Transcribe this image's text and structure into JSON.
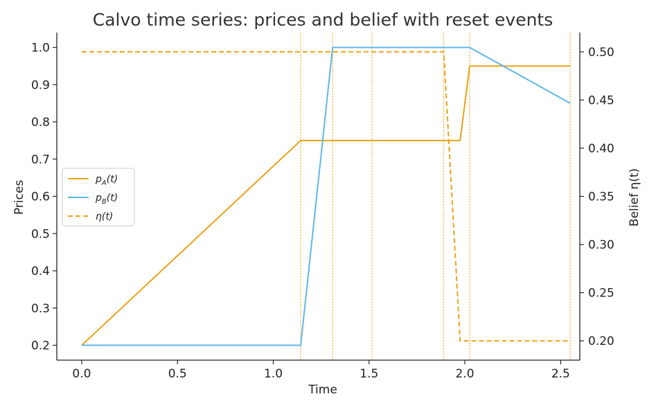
{
  "chart_data": {
    "type": "line",
    "title": "Calvo time series: prices and belief with reset events",
    "xlabel": "Time",
    "ylabel": "Prices",
    "y2label": "Belief η(t)",
    "xlim": [
      -0.13,
      2.6
    ],
    "ylim": [
      0.16,
      1.04
    ],
    "y2lim": [
      0.18,
      0.52
    ],
    "xticks": [
      0.0,
      0.5,
      1.0,
      1.5,
      2.0,
      2.5
    ],
    "xtick_labels": [
      "0.0",
      "0.5",
      "1.0",
      "1.5",
      "2.0",
      "2.5"
    ],
    "yticks": [
      0.2,
      0.3,
      0.4,
      0.5,
      0.6,
      0.7,
      0.8,
      0.9,
      1.0
    ],
    "ytick_labels": [
      "0.2",
      "0.3",
      "0.4",
      "0.5",
      "0.6",
      "0.7",
      "0.8",
      "0.9",
      "1.0"
    ],
    "y2ticks": [
      0.2,
      0.25,
      0.3,
      0.35,
      0.4,
      0.45,
      0.5
    ],
    "y2tick_labels": [
      "0.20",
      "0.25",
      "0.30",
      "0.35",
      "0.40",
      "0.45",
      "0.50"
    ],
    "grid": false,
    "legend_position": "left",
    "reset_events": [
      1.143,
      1.31,
      1.515,
      1.89,
      2.025,
      2.55
    ],
    "series": [
      {
        "name": "pA(t)",
        "axis": "left",
        "color": "#E8A317",
        "style": "solid",
        "x": [
          0.0,
          1.143,
          1.975,
          2.025,
          2.55
        ],
        "y": [
          0.2,
          0.75,
          0.75,
          0.95,
          0.95
        ]
      },
      {
        "name": "pB(t)",
        "axis": "left",
        "color": "#5DB8E8",
        "style": "solid",
        "x": [
          0.0,
          1.143,
          1.31,
          2.025,
          2.55
        ],
        "y": [
          0.2,
          0.2,
          1.0,
          1.0,
          0.85
        ]
      },
      {
        "name": "η(t)",
        "axis": "right",
        "color": "#E8A317",
        "style": "dashed",
        "x": [
          0.0,
          1.89,
          1.975,
          2.55
        ],
        "y": [
          0.5,
          0.5,
          0.2,
          0.2
        ]
      }
    ],
    "legend": [
      {
        "label_main": "p",
        "label_sub": "A",
        "label_rest": "(t)",
        "series": 0
      },
      {
        "label_main": "p",
        "label_sub": "B",
        "label_rest": "(t)",
        "series": 1
      },
      {
        "label_main": "η(t)",
        "label_sub": "",
        "label_rest": "",
        "series": 2
      }
    ]
  }
}
